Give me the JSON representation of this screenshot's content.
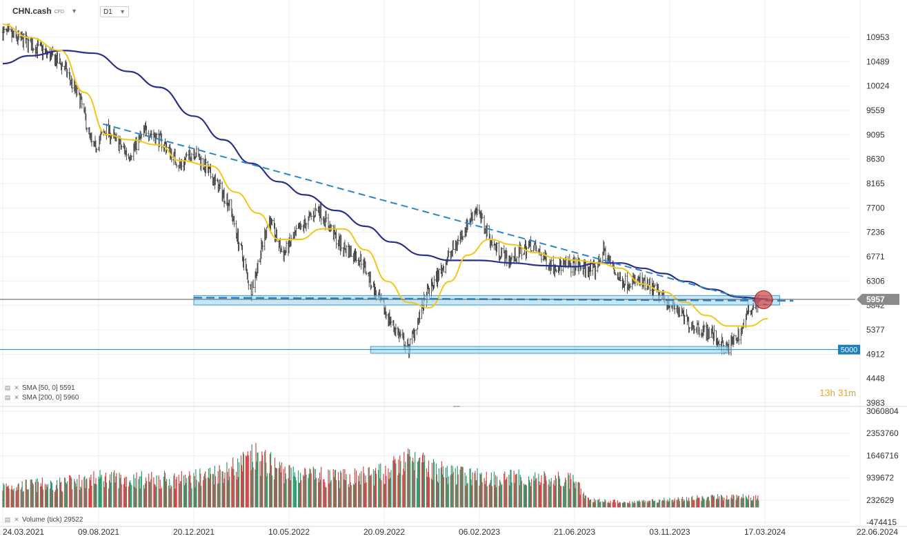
{
  "header": {
    "symbol": "CHN.cash",
    "symbol_sub": "CFD",
    "timeframe": "D1"
  },
  "legend": {
    "sma50": "SMA [50, 0] 5591",
    "sma200": "SMA [200, 0] 5960",
    "volume": "Volume (tick) 29522"
  },
  "timer": {
    "h": "13",
    "h_unit": "h",
    "m": "31",
    "m_unit": "m"
  },
  "colors": {
    "sma50": "#f5c518",
    "sma200": "#2a2f8f",
    "trend": "#2a86c8",
    "zone_fill": "#a8d8f0",
    "zone_stroke": "#3a9fd5",
    "vol_up": "#2e9a6e",
    "vol_down": "#d64545",
    "price_tag": "#8a8a8a",
    "level_tag": "#1a7fc0"
  },
  "chart_data": [
    {
      "type": "candlestick",
      "instrument": "CHN.cash",
      "timeframe": "D1",
      "x_tick_labels": [
        "24.03.2021",
        "09.08.2021",
        "20.12.2021",
        "10.05.2022",
        "20.09.2022",
        "06.02.2023",
        "21.06.2023",
        "03.11.2023",
        "17.03.2024",
        "22.06.2024"
      ],
      "y_tick_labels": [
        10953,
        10489,
        10024,
        9559,
        9095,
        8630,
        8165,
        7700,
        7236,
        6771,
        6306,
        5842,
        5377,
        4912,
        4448,
        3983
      ],
      "ylim": [
        3983,
        11418
      ],
      "price_close_path": [
        {
          "x": "2021-03-24",
          "y": 11050
        },
        {
          "x": "2021-04-20",
          "y": 10900
        },
        {
          "x": "2021-05-20",
          "y": 10700
        },
        {
          "x": "2021-06-20",
          "y": 10400
        },
        {
          "x": "2021-07-15",
          "y": 9700
        },
        {
          "x": "2021-08-01",
          "y": 8800
        },
        {
          "x": "2021-08-20",
          "y": 9200
        },
        {
          "x": "2021-09-20",
          "y": 8700
        },
        {
          "x": "2021-10-15",
          "y": 9200
        },
        {
          "x": "2021-11-10",
          "y": 8900
        },
        {
          "x": "2021-12-01",
          "y": 8500
        },
        {
          "x": "2021-12-20",
          "y": 8800
        },
        {
          "x": "2022-01-15",
          "y": 8300
        },
        {
          "x": "2022-02-10",
          "y": 7800
        },
        {
          "x": "2022-03-15",
          "y": 6100
        },
        {
          "x": "2022-04-10",
          "y": 7500
        },
        {
          "x": "2022-05-01",
          "y": 6800
        },
        {
          "x": "2022-05-20",
          "y": 7200
        },
        {
          "x": "2022-06-20",
          "y": 7700
        },
        {
          "x": "2022-07-20",
          "y": 7000
        },
        {
          "x": "2022-08-20",
          "y": 6700
        },
        {
          "x": "2022-09-10",
          "y": 6000
        },
        {
          "x": "2022-10-01",
          "y": 5500
        },
        {
          "x": "2022-10-25",
          "y": 5000
        },
        {
          "x": "2022-11-20",
          "y": 6000
        },
        {
          "x": "2022-12-20",
          "y": 6700
        },
        {
          "x": "2023-01-20",
          "y": 7400
        },
        {
          "x": "2023-02-01",
          "y": 7700
        },
        {
          "x": "2023-02-25",
          "y": 7000
        },
        {
          "x": "2023-03-20",
          "y": 6700
        },
        {
          "x": "2023-04-20",
          "y": 7000
        },
        {
          "x": "2023-05-20",
          "y": 6600
        },
        {
          "x": "2023-06-21",
          "y": 6600
        },
        {
          "x": "2023-07-20",
          "y": 6500
        },
        {
          "x": "2023-08-01",
          "y": 6900
        },
        {
          "x": "2023-08-25",
          "y": 6300
        },
        {
          "x": "2023-09-20",
          "y": 6300
        },
        {
          "x": "2023-10-15",
          "y": 6100
        },
        {
          "x": "2023-11-03",
          "y": 5900
        },
        {
          "x": "2023-12-01",
          "y": 5500
        },
        {
          "x": "2024-01-01",
          "y": 5300
        },
        {
          "x": "2024-01-22",
          "y": 5000
        },
        {
          "x": "2024-02-10",
          "y": 5300
        },
        {
          "x": "2024-02-25",
          "y": 5800
        },
        {
          "x": "2024-03-10",
          "y": 5950
        }
      ],
      "sma50": {
        "name": "SMA [50, 0]",
        "last": 5591,
        "points": [
          {
            "x": "2021-03-24",
            "y": 11200
          },
          {
            "x": "2021-05-01",
            "y": 10950
          },
          {
            "x": "2021-06-15",
            "y": 10700
          },
          {
            "x": "2021-07-20",
            "y": 9900
          },
          {
            "x": "2021-08-20",
            "y": 9100
          },
          {
            "x": "2021-09-20",
            "y": 9000
          },
          {
            "x": "2021-11-01",
            "y": 8900
          },
          {
            "x": "2021-12-01",
            "y": 8600
          },
          {
            "x": "2022-01-15",
            "y": 8500
          },
          {
            "x": "2022-02-20",
            "y": 8000
          },
          {
            "x": "2022-03-25",
            "y": 7600
          },
          {
            "x": "2022-04-25",
            "y": 7100
          },
          {
            "x": "2022-05-25",
            "y": 7100
          },
          {
            "x": "2022-06-25",
            "y": 7300
          },
          {
            "x": "2022-07-25",
            "y": 7300
          },
          {
            "x": "2022-08-25",
            "y": 6900
          },
          {
            "x": "2022-09-25",
            "y": 6300
          },
          {
            "x": "2022-10-25",
            "y": 5900
          },
          {
            "x": "2022-11-25",
            "y": 5800
          },
          {
            "x": "2022-12-25",
            "y": 6300
          },
          {
            "x": "2023-01-20",
            "y": 6800
          },
          {
            "x": "2023-02-20",
            "y": 7100
          },
          {
            "x": "2023-03-25",
            "y": 7000
          },
          {
            "x": "2023-04-25",
            "y": 6850
          },
          {
            "x": "2023-05-25",
            "y": 6750
          },
          {
            "x": "2023-06-25",
            "y": 6700
          },
          {
            "x": "2023-07-25",
            "y": 6650
          },
          {
            "x": "2023-08-25",
            "y": 6550
          },
          {
            "x": "2023-09-25",
            "y": 6250
          },
          {
            "x": "2023-10-25",
            "y": 6100
          },
          {
            "x": "2023-11-25",
            "y": 5900
          },
          {
            "x": "2023-12-25",
            "y": 5650
          },
          {
            "x": "2024-01-25",
            "y": 5450
          },
          {
            "x": "2024-02-25",
            "y": 5450
          },
          {
            "x": "2024-03-20",
            "y": 5591
          }
        ]
      },
      "sma200": {
        "name": "SMA [200, 0]",
        "last": 5960,
        "points": [
          {
            "x": "2021-03-24",
            "y": 10450
          },
          {
            "x": "2021-05-01",
            "y": 10600
          },
          {
            "x": "2021-06-20",
            "y": 10700
          },
          {
            "x": "2021-08-01",
            "y": 10650
          },
          {
            "x": "2021-09-20",
            "y": 10300
          },
          {
            "x": "2021-11-01",
            "y": 10000
          },
          {
            "x": "2021-12-20",
            "y": 9450
          },
          {
            "x": "2022-02-01",
            "y": 9000
          },
          {
            "x": "2022-03-15",
            "y": 8550
          },
          {
            "x": "2022-04-25",
            "y": 8200
          },
          {
            "x": "2022-06-01",
            "y": 7950
          },
          {
            "x": "2022-07-15",
            "y": 7650
          },
          {
            "x": "2022-08-25",
            "y": 7350
          },
          {
            "x": "2022-10-01",
            "y": 7050
          },
          {
            "x": "2022-11-15",
            "y": 6800
          },
          {
            "x": "2022-12-25",
            "y": 6700
          },
          {
            "x": "2023-02-06",
            "y": 6700
          },
          {
            "x": "2023-03-25",
            "y": 6650
          },
          {
            "x": "2023-05-10",
            "y": 6600
          },
          {
            "x": "2023-06-21",
            "y": 6580
          },
          {
            "x": "2023-07-25",
            "y": 6650
          },
          {
            "x": "2023-08-25",
            "y": 6650
          },
          {
            "x": "2023-09-25",
            "y": 6550
          },
          {
            "x": "2023-10-25",
            "y": 6450
          },
          {
            "x": "2023-11-25",
            "y": 6300
          },
          {
            "x": "2024-01-01",
            "y": 6150
          },
          {
            "x": "2024-02-10",
            "y": 6000
          },
          {
            "x": "2024-03-20",
            "y": 5960
          }
        ]
      },
      "drawings": {
        "trendline_upper": [
          {
            "x": "2021-08-15",
            "y": 9300
          },
          {
            "x": "2024-03-20",
            "y": 5850
          }
        ],
        "trendline_horizontal": [
          {
            "x": "2021-12-20",
            "y": 5990
          },
          {
            "x": "2024-04-15",
            "y": 5930
          }
        ],
        "resistance_zone": {
          "x0": "2021-12-20",
          "x1": "2024-04-01",
          "y0": 5850,
          "y1": 6030
        },
        "support_zone": {
          "x0": "2022-09-01",
          "x1": "2024-01-25",
          "y0": 4930,
          "y1": 5060
        },
        "support_line_level": 5000,
        "highlight_circle": {
          "x": "2024-03-15",
          "y": 5950
        }
      },
      "current_price": 5957,
      "level_label": 5000
    },
    {
      "type": "bar",
      "name": "Volume (tick)",
      "last": 29522,
      "y_tick_labels": [
        3060804,
        2353760,
        1646716,
        939672,
        232629,
        -474415
      ],
      "ylim": [
        -474415,
        3060804
      ],
      "volume_envelope": [
        {
          "x": "2021-03-24",
          "y": 800000
        },
        {
          "x": "2021-06-20",
          "y": 900000
        },
        {
          "x": "2021-08-09",
          "y": 1100000
        },
        {
          "x": "2021-11-01",
          "y": 1050000
        },
        {
          "x": "2021-12-20",
          "y": 1100000
        },
        {
          "x": "2022-02-20",
          "y": 1500000
        },
        {
          "x": "2022-03-20",
          "y": 1900000
        },
        {
          "x": "2022-05-10",
          "y": 1300000
        },
        {
          "x": "2022-07-20",
          "y": 1100000
        },
        {
          "x": "2022-09-20",
          "y": 1300000
        },
        {
          "x": "2022-10-25",
          "y": 1800000
        },
        {
          "x": "2022-12-20",
          "y": 1300000
        },
        {
          "x": "2023-02-06",
          "y": 1150000
        },
        {
          "x": "2023-04-20",
          "y": 1100000
        },
        {
          "x": "2023-06-20",
          "y": 1000000
        },
        {
          "x": "2023-07-10",
          "y": 300000
        },
        {
          "x": "2023-09-01",
          "y": 200000
        },
        {
          "x": "2023-11-03",
          "y": 300000
        },
        {
          "x": "2024-01-15",
          "y": 400000
        },
        {
          "x": "2024-03-10",
          "y": 380000
        },
        {
          "x": "2024-03-20",
          "y": 29522
        }
      ]
    }
  ]
}
